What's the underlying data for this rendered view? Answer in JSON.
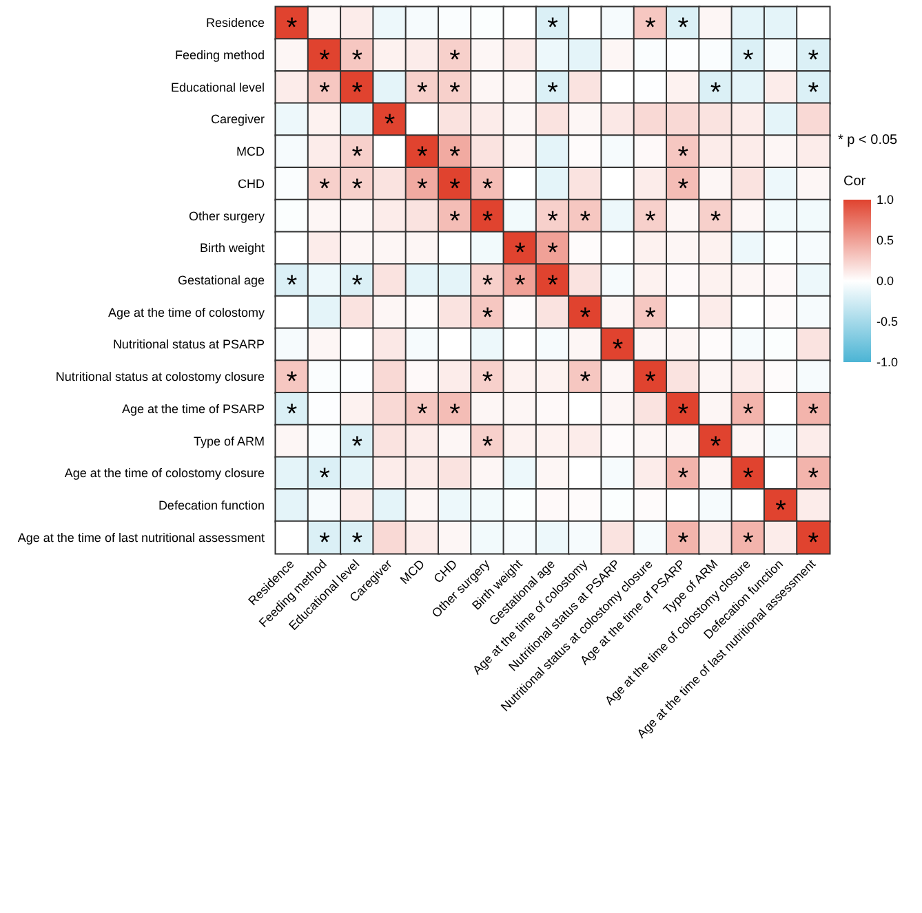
{
  "chart_data": {
    "type": "heatmap",
    "clabel": "Cor",
    "annotations": [
      "* p < 0.05"
    ],
    "categories": [
      "Residence",
      "Feeding method",
      "Educational level",
      "Caregiver",
      "MCD",
      "CHD",
      "Other surgery",
      "Birth weight",
      "Gestational age",
      "Age at the time of colostomy",
      "Nutritional status at PSARP",
      "Nutritional status at colostomy closure",
      "Age at the time of PSARP",
      "Type of ARM",
      "Age at the time of colostomy closure",
      "Defecation function",
      "Age at the time of last nutritional assessment"
    ],
    "y_categories": [
      "Residence",
      "Feeding method",
      "Educational level",
      "Caregiver",
      "MCD",
      "CHD",
      "Other surgery",
      "Birth weight",
      "Gestational age",
      "Age at the time of colostomy",
      "Nutritional status at PSARP",
      "Nutritional status at colostomy closure",
      "Age at the time of PSARP",
      "Type of ARM",
      "Age at the time of colostomy closure",
      "Defecation function",
      "Age at the time of last nutritional assessment"
    ],
    "cells": [
      [
        1,
        0.05,
        0.1,
        -0.1,
        -0.05,
        -0.03,
        -0.02,
        0,
        -0.2,
        0,
        -0.05,
        0.3,
        -0.2,
        0.05,
        -0.15,
        -0.15,
        0
      ],
      [
        0.05,
        1,
        0.3,
        0.07,
        0.1,
        0.25,
        0.05,
        0.1,
        -0.1,
        -0.15,
        0.05,
        -0.03,
        -0.01,
        -0.03,
        -0.2,
        -0.05,
        -0.2
      ],
      [
        0.1,
        0.3,
        1,
        -0.15,
        0.25,
        0.25,
        0.05,
        0.05,
        -0.2,
        0.15,
        0,
        -0.01,
        0.07,
        -0.2,
        -0.15,
        0.1,
        -0.2
      ],
      [
        -0.1,
        0.07,
        -0.15,
        1,
        0,
        0.15,
        0.1,
        0.05,
        0.15,
        0.05,
        0.12,
        0.2,
        0.2,
        0.15,
        0.1,
        -0.15,
        0.2
      ],
      [
        -0.05,
        0.1,
        0.25,
        0,
        1,
        0.45,
        0.15,
        0.05,
        -0.15,
        0.02,
        -0.05,
        0.03,
        0.3,
        0.1,
        0.1,
        0.05,
        0.1
      ],
      [
        -0.03,
        0.25,
        0.25,
        0.15,
        0.45,
        1,
        0.35,
        0,
        -0.15,
        0.15,
        0,
        0.1,
        0.35,
        0.05,
        0.15,
        -0.1,
        0.05
      ],
      [
        -0.02,
        0.05,
        0.05,
        0.1,
        0.15,
        0.35,
        1,
        -0.07,
        0.25,
        0.3,
        -0.1,
        0.25,
        0.05,
        0.25,
        0.05,
        -0.07,
        -0.07
      ],
      [
        0,
        0.1,
        0.05,
        0.05,
        0.05,
        0,
        -0.07,
        1,
        0.5,
        0.02,
        0,
        0.07,
        0.05,
        0.07,
        -0.1,
        -0.02,
        -0.05
      ],
      [
        -0.2,
        -0.1,
        -0.2,
        0.15,
        -0.15,
        -0.15,
        0.25,
        0.5,
        1,
        0.15,
        -0.05,
        0.07,
        0.03,
        0.07,
        0.05,
        0.03,
        -0.1
      ],
      [
        0,
        -0.15,
        0.15,
        0.05,
        0.02,
        0.15,
        0.3,
        0.02,
        0.15,
        1,
        0.05,
        0.3,
        0,
        0.1,
        0,
        0.02,
        -0.05
      ],
      [
        -0.05,
        0.05,
        0,
        0.12,
        -0.05,
        0,
        -0.1,
        0,
        -0.05,
        0.05,
        1,
        0.05,
        0.05,
        0.02,
        -0.05,
        -0.02,
        0.15
      ],
      [
        0.3,
        -0.03,
        -0.01,
        0.2,
        0.03,
        0.1,
        0.25,
        0.07,
        0.07,
        0.3,
        0.05,
        1,
        0.15,
        0.05,
        0.1,
        0.02,
        -0.05
      ],
      [
        -0.2,
        -0.01,
        0.07,
        0.2,
        0.3,
        0.35,
        0.05,
        0.05,
        0.03,
        0,
        0.05,
        0.15,
        1,
        0.05,
        0.4,
        0,
        0.4
      ],
      [
        0.05,
        -0.03,
        -0.2,
        0.15,
        0.1,
        0.05,
        0.25,
        0.07,
        0.07,
        0.1,
        0.02,
        0.05,
        0.05,
        1,
        0.05,
        -0.05,
        0.1
      ],
      [
        -0.15,
        -0.2,
        -0.15,
        0.1,
        0.1,
        0.15,
        0.05,
        -0.1,
        0.05,
        0,
        -0.05,
        0.1,
        0.4,
        0.05,
        1,
        0,
        0.4
      ],
      [
        -0.15,
        -0.05,
        0.1,
        -0.15,
        0.05,
        -0.1,
        -0.07,
        -0.02,
        0.03,
        0.02,
        -0.02,
        0.02,
        0,
        -0.05,
        0,
        1,
        0.1
      ],
      [
        0,
        -0.2,
        -0.2,
        0.2,
        0.1,
        0.05,
        -0.07,
        -0.05,
        -0.1,
        -0.05,
        0.15,
        -0.05,
        0.4,
        0.1,
        0.4,
        0.1,
        1
      ]
    ],
    "cell_labels": [
      [
        "*",
        null,
        null,
        null,
        null,
        null,
        null,
        null,
        "*",
        null,
        null,
        "*",
        "*",
        null,
        null,
        null,
        null
      ],
      [
        null,
        "*",
        "*",
        null,
        null,
        "*",
        null,
        null,
        null,
        null,
        null,
        null,
        null,
        null,
        "*",
        null,
        "*"
      ],
      [
        null,
        "*",
        "*",
        null,
        "*",
        "*",
        null,
        null,
        "*",
        null,
        null,
        null,
        null,
        "*",
        null,
        null,
        "*"
      ],
      [
        null,
        null,
        null,
        "*",
        null,
        null,
        null,
        null,
        null,
        null,
        null,
        null,
        null,
        null,
        null,
        null,
        null
      ],
      [
        null,
        null,
        "*",
        null,
        "*",
        "*",
        null,
        null,
        null,
        null,
        null,
        null,
        "*",
        null,
        null,
        null,
        null
      ],
      [
        null,
        "*",
        "*",
        null,
        "*",
        "*",
        "*",
        null,
        null,
        null,
        null,
        null,
        "*",
        null,
        null,
        null,
        null
      ],
      [
        null,
        null,
        null,
        null,
        null,
        "*",
        "*",
        null,
        "*",
        "*",
        null,
        "*",
        null,
        "*",
        null,
        null,
        null
      ],
      [
        null,
        null,
        null,
        null,
        null,
        null,
        null,
        "*",
        "*",
        null,
        null,
        null,
        null,
        null,
        null,
        null,
        null
      ],
      [
        "*",
        null,
        "*",
        null,
        null,
        null,
        "*",
        "*",
        "*",
        null,
        null,
        null,
        null,
        null,
        null,
        null,
        null
      ],
      [
        null,
        null,
        null,
        null,
        null,
        null,
        "*",
        null,
        null,
        "*",
        null,
        "*",
        null,
        null,
        null,
        null,
        null
      ],
      [
        null,
        null,
        null,
        null,
        null,
        null,
        null,
        null,
        null,
        null,
        "*",
        null,
        null,
        null,
        null,
        null,
        null
      ],
      [
        "*",
        null,
        null,
        null,
        null,
        null,
        "*",
        null,
        null,
        "*",
        null,
        "*",
        null,
        null,
        null,
        null,
        null
      ],
      [
        "*",
        null,
        null,
        null,
        "*",
        "*",
        null,
        null,
        null,
        null,
        null,
        null,
        "*",
        null,
        "*",
        null,
        "*"
      ],
      [
        null,
        null,
        "*",
        null,
        null,
        null,
        "*",
        null,
        null,
        null,
        null,
        null,
        null,
        "*",
        null,
        null,
        null
      ],
      [
        null,
        "*",
        null,
        null,
        null,
        null,
        null,
        null,
        null,
        null,
        null,
        null,
        "*",
        null,
        "*",
        null,
        "*"
      ],
      [
        null,
        null,
        null,
        null,
        null,
        null,
        null,
        null,
        null,
        null,
        null,
        null,
        null,
        null,
        null,
        "*",
        null
      ],
      [
        null,
        "*",
        "*",
        null,
        null,
        null,
        null,
        null,
        null,
        null,
        null,
        null,
        "*",
        null,
        "*",
        null,
        "*"
      ]
    ],
    "clim": [
      -1,
      1
    ],
    "cticks": [
      {
        "value": -1,
        "label": "-1.0"
      },
      {
        "value": -0.5,
        "label": "-0.5"
      },
      {
        "value": 0,
        "label": "0.0"
      },
      {
        "value": 0.5,
        "label": "0.5"
      },
      {
        "value": 1,
        "label": "1.0"
      }
    ]
  }
}
